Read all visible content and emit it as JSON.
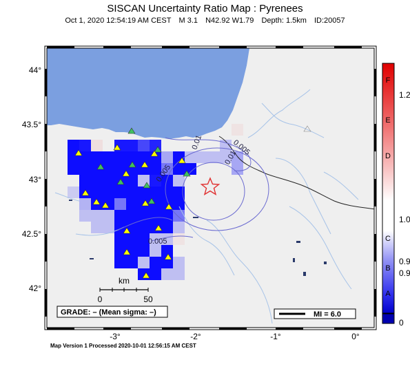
{
  "title": "SISCAN Uncertainty Ratio Map : Pyrenees",
  "event": {
    "datetime": "Oct  1, 2020 12:54:19 AM CEST",
    "magnitude": "M 3.1",
    "location": "N42.92 W1.79",
    "depth": "Depth: 1.5km",
    "id": "ID:20057"
  },
  "axes": {
    "x_ticks": [
      "-3°",
      "-2°",
      "-1°",
      "0°"
    ],
    "y_ticks": [
      "44°",
      "43.5°",
      "43°",
      "42.5°",
      "42°"
    ]
  },
  "scale_bar": {
    "unit": "km",
    "left_label": "0",
    "right_label": "50"
  },
  "grade_box": "GRADE: – (Mean sigma: –)",
  "mi_legend": "MI = 6.0",
  "contour_labels": [
    "0.005",
    "0.01",
    "0.005",
    "0.01",
    "0.005",
    "0.005"
  ],
  "colorbar": {
    "grades": [
      "F",
      "E",
      "D",
      "C",
      "B",
      "A"
    ],
    "values": [
      "1.2",
      "1.0",
      "0.9",
      "0.9",
      "0"
    ]
  },
  "colors": {
    "sea": "#7b9fe0",
    "land": "#efefef",
    "high_uncertainty": "#0000ff",
    "station_green": "#40c060",
    "station_yellow": "#ffff00",
    "epicenter": "#e03030"
  },
  "footer": "Map Version 1 Processed 2020-10-01 12:56:15 AM CEST"
}
